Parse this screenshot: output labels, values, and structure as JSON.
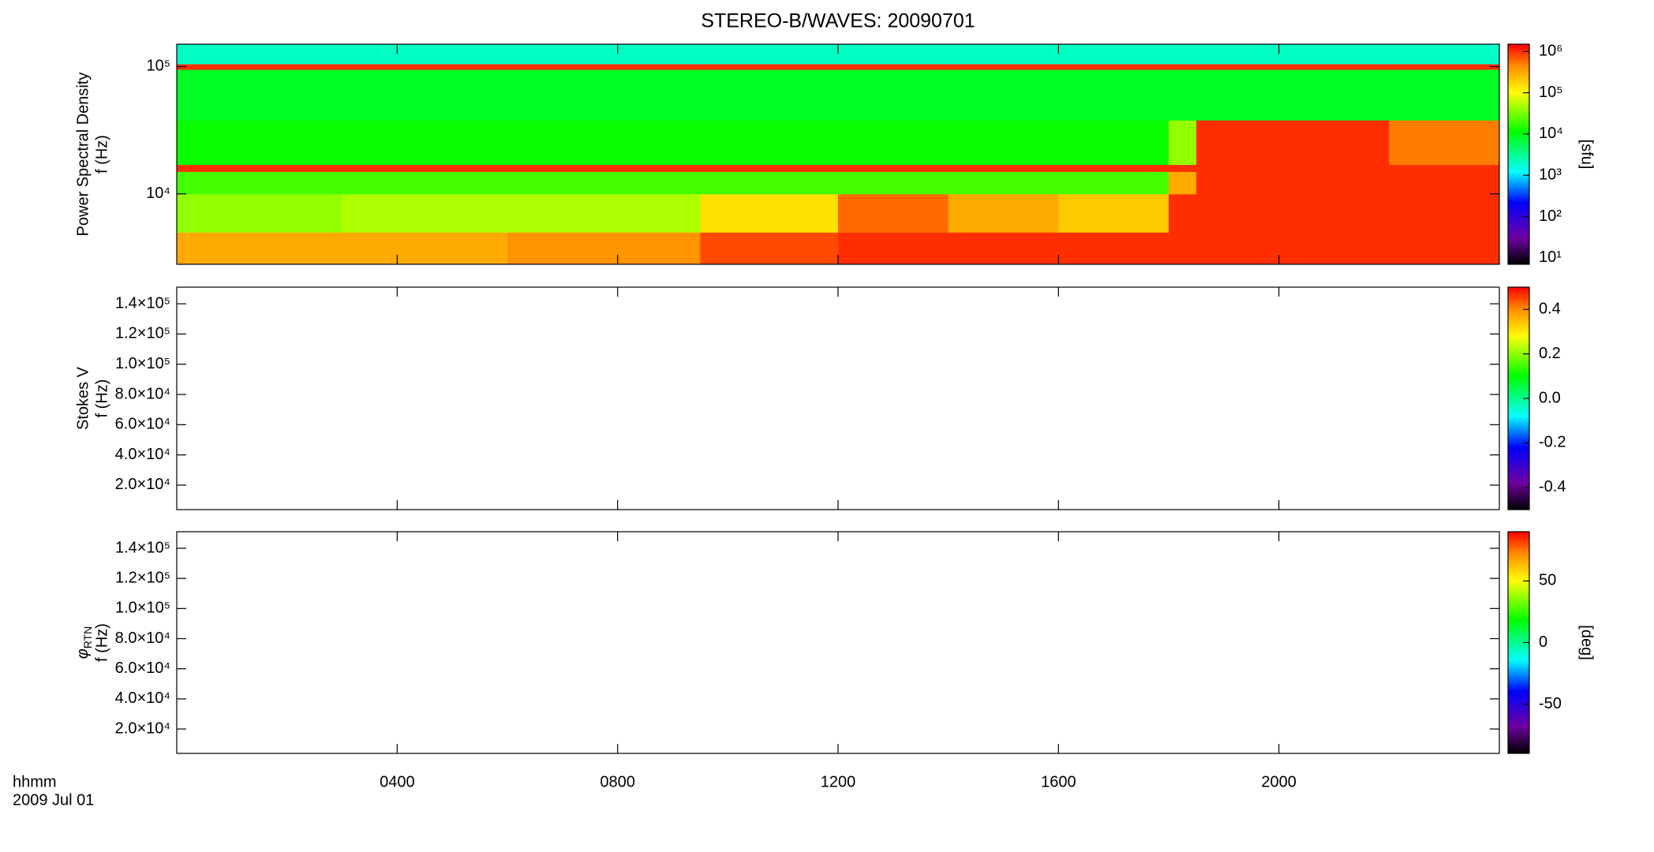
{
  "chart_data": [
    {
      "type": "spectrogram",
      "title": "STEREO-B/WAVES: 20090701",
      "ylabel": [
        "Power Spectral Density",
        "f (Hz)"
      ],
      "xlim": [
        0,
        24
      ],
      "ylim": [
        2800,
        150000
      ],
      "log": true,
      "yticks": [
        {
          "value": 10000,
          "label": "10⁴"
        },
        {
          "value": 100000,
          "label": "10⁵"
        }
      ],
      "time_edges": [
        0,
        3,
        6,
        9.5,
        12,
        14,
        16,
        18,
        18.5,
        20,
        22,
        24
      ],
      "freq_edges": [
        2800,
        5000,
        10000,
        15000,
        17000,
        38000,
        95000,
        105000,
        150000
      ],
      "values": [
        [
          300000,
          300000,
          400000,
          800000,
          1000000,
          1000000,
          1000000,
          1000000,
          1000000,
          1000000,
          1000000
        ],
        [
          40000,
          50000,
          50000,
          150000,
          600000,
          300000,
          200000,
          1000000,
          1000000,
          1000000,
          1000000
        ],
        [
          20000,
          20000,
          20000,
          20000,
          20000,
          20000,
          20000,
          300000,
          1000000,
          1000000,
          1000000
        ],
        [
          1000000,
          1000000,
          1000000,
          1000000,
          1000000,
          1000000,
          1000000,
          1000000,
          1000000,
          1000000,
          1000000
        ],
        [
          12000,
          12000,
          12000,
          12000,
          12000,
          12000,
          12000,
          40000,
          1000000,
          1000000,
          500000
        ],
        [
          8000,
          8000,
          8000,
          8000,
          8000,
          8000,
          8000,
          8000,
          8000,
          8000,
          8000
        ],
        [
          1000000,
          1000000,
          1000000,
          1000000,
          1000000,
          1000000,
          1000000,
          1000000,
          1000000,
          1000000,
          1000000
        ],
        [
          2000,
          2000,
          2000,
          2000,
          2000,
          2000,
          2000,
          2000,
          2000,
          2000,
          2000
        ]
      ],
      "colorbar": {
        "label": "[sfu]",
        "log": true,
        "zlim": [
          7,
          1500000
        ],
        "zticks": [
          {
            "value": 10,
            "label": "10¹"
          },
          {
            "value": 100,
            "label": "10²"
          },
          {
            "value": 1000,
            "label": "10³"
          },
          {
            "value": 10000,
            "label": "10⁴"
          },
          {
            "value": 100000,
            "label": "10⁵"
          },
          {
            "value": 1000000,
            "label": "10⁶"
          }
        ]
      }
    },
    {
      "type": "spectrogram",
      "ylabel": [
        "Stokes V",
        "f (Hz)"
      ],
      "xlim": [
        0,
        24
      ],
      "ylim": [
        3800,
        151000
      ],
      "log": false,
      "yticks": [
        {
          "value": 20000,
          "label": "2.0×10⁴"
        },
        {
          "value": 40000,
          "label": "4.0×10⁴"
        },
        {
          "value": 60000,
          "label": "6.0×10⁴"
        },
        {
          "value": 80000,
          "label": "8.0×10⁴"
        },
        {
          "value": 100000,
          "label": "1.0×10⁵"
        },
        {
          "value": 120000,
          "label": "1.2×10⁵"
        },
        {
          "value": 140000,
          "label": "1.4×10⁵"
        }
      ],
      "colorbar": {
        "log": false,
        "zlim": [
          -0.5,
          0.5
        ],
        "zticks": [
          -0.4,
          -0.2,
          {
            "value": 0,
            "label": "0.0"
          },
          0.2,
          0.4
        ]
      }
    },
    {
      "type": "spectrogram",
      "ylabel_symbol": "φ",
      "ylabel_subscript": "RTN",
      "ylabel": [
        "f (Hz)"
      ],
      "xlim": [
        0,
        24
      ],
      "ylim": [
        3800,
        151000
      ],
      "log": false,
      "yticks": [
        {
          "value": 20000,
          "label": "2.0×10⁴"
        },
        {
          "value": 40000,
          "label": "4.0×10⁴"
        },
        {
          "value": 60000,
          "label": "6.0×10⁴"
        },
        {
          "value": 80000,
          "label": "8.0×10⁴"
        },
        {
          "value": 100000,
          "label": "1.0×10⁵"
        },
        {
          "value": 120000,
          "label": "1.2×10⁵"
        },
        {
          "value": 140000,
          "label": "1.4×10⁵"
        }
      ],
      "xticks": [
        {
          "value": 4,
          "label": "0400"
        },
        {
          "value": 8,
          "label": "0800"
        },
        {
          "value": 12,
          "label": "1200"
        },
        {
          "value": 16,
          "label": "1600"
        },
        {
          "value": 20,
          "label": "2000"
        }
      ],
      "xlabel": "hhmm",
      "date": "2009 Jul 01",
      "colorbar": {
        "label": "[deg]",
        "log": false,
        "zlim": [
          -90,
          90
        ],
        "zticks": [
          -50,
          0,
          50
        ]
      }
    }
  ]
}
